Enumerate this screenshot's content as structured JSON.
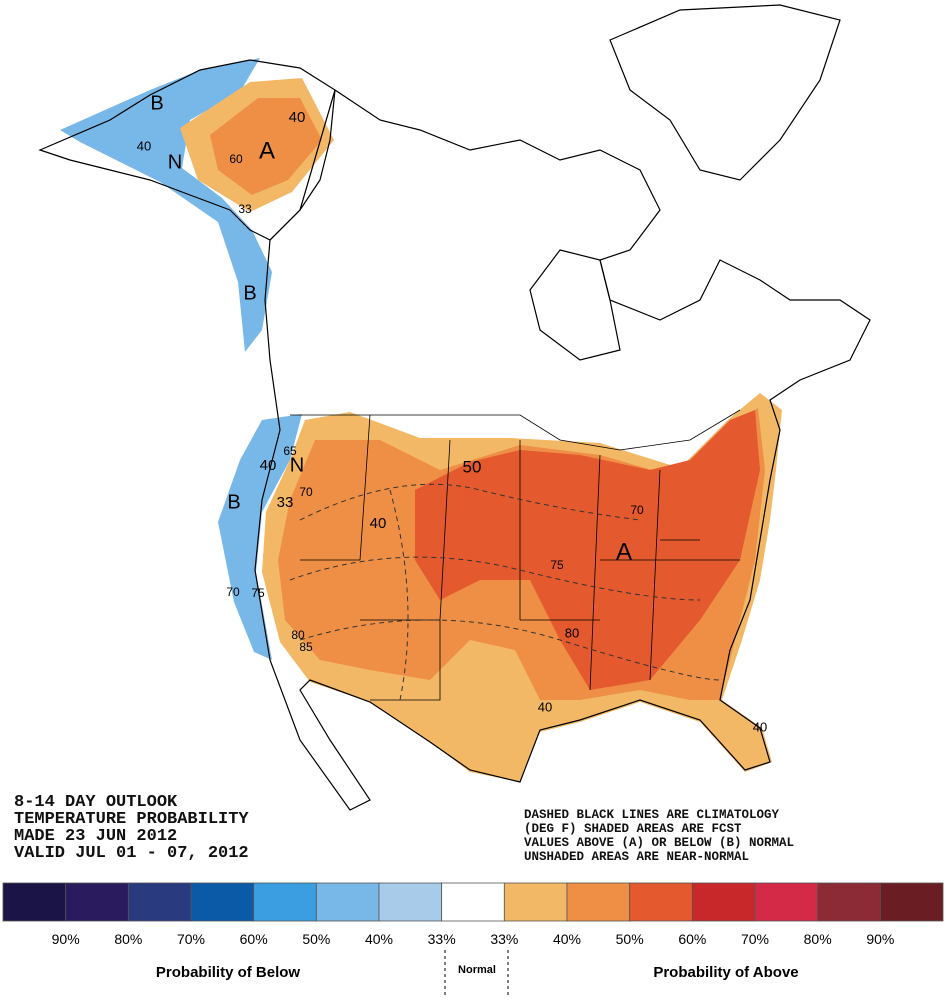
{
  "title_lines": [
    "8-14 DAY OUTLOOK",
    "TEMPERATURE PROBABILITY",
    "MADE  23 JUN 2012",
    "VALID  JUL 01 - 07, 2012"
  ],
  "notes": [
    "DASHED BLACK LINES ARE CLIMATOLOGY",
    "(DEG F) SHADED AREAS ARE FCST",
    "VALUES ABOVE (A) OR BELOW (B) NORMAL",
    "UNSHADED AREAS ARE NEAR-NORMAL"
  ],
  "map_labels": [
    "A",
    "A",
    "B",
    "B",
    "B",
    "N",
    "N",
    "40",
    "40",
    "60",
    "33",
    "50",
    "40",
    "70",
    "33",
    "40",
    "65",
    "70",
    "75",
    "80",
    "85",
    "75",
    "80",
    "70",
    "40",
    "40"
  ],
  "legend": {
    "colors": [
      "#1b1446",
      "#2a1a5e",
      "#2a3a7e",
      "#0a5aa8",
      "#3a9ee0",
      "#78b8e8",
      "#a8cbea",
      "#ffffff",
      "#f2b866",
      "#ee8f45",
      "#e4592e",
      "#c8282a",
      "#d42a48",
      "#8c2a36",
      "#6a1e24"
    ],
    "labels": [
      "90%",
      "80%",
      "70%",
      "60%",
      "50%",
      "40%",
      "33%",
      "33%",
      "40%",
      "50%",
      "60%",
      "70%",
      "80%",
      "90%"
    ],
    "below": "Probability of Below",
    "normal": "Normal",
    "above": "Probability of Above"
  }
}
